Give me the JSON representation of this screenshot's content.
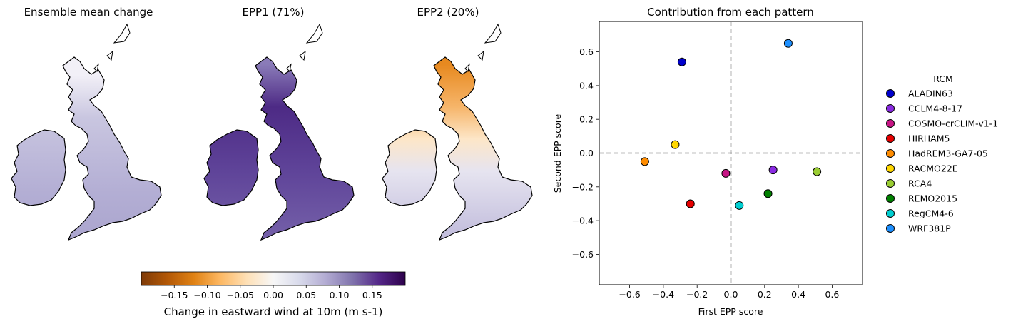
{
  "maps": [
    {
      "title": "Ensemble mean change",
      "pattern": "mean"
    },
    {
      "title": "EPP1 (71%)",
      "pattern": "epp1"
    },
    {
      "title": "EPP2 (20%)",
      "pattern": "epp2"
    }
  ],
  "colorbar": {
    "label": "Change in eastward wind at 10m (m s-1)",
    "range": [
      -0.2,
      0.2
    ],
    "ticks": [
      -0.15,
      -0.1,
      -0.05,
      0.0,
      0.05,
      0.1,
      0.15
    ],
    "tick_labels": [
      "−0.15",
      "−0.10",
      "−0.05",
      "0.00",
      "0.05",
      "0.10",
      "0.15"
    ],
    "colors": [
      "#7f3b08",
      "#b35806",
      "#e08214",
      "#fdb863",
      "#fee0b6",
      "#f7f7f7",
      "#d8daeb",
      "#b2abd2",
      "#8073ac",
      "#542788",
      "#2d004b"
    ]
  },
  "chart_data": {
    "type": "scatter",
    "title": "Contribution from each pattern",
    "xlabel": "First EPP score",
    "ylabel": "Second EPP score",
    "xlim": [
      -0.78,
      0.78
    ],
    "ylim": [
      -0.78,
      0.78
    ],
    "xticks": [
      -0.6,
      -0.4,
      -0.2,
      0.0,
      0.2,
      0.4,
      0.6
    ],
    "xtick_labels": [
      "−0.6",
      "−0.4",
      "−0.2",
      "0.0",
      "0.2",
      "0.4",
      "0.6"
    ],
    "yticks": [
      -0.6,
      -0.4,
      -0.2,
      0.0,
      0.2,
      0.4,
      0.6
    ],
    "ytick_labels": [
      "−0.6",
      "−0.4",
      "−0.2",
      "0.0",
      "0.2",
      "0.4",
      "0.6"
    ],
    "reference_lines": {
      "x": 0,
      "y": 0,
      "style": "dashed",
      "color": "#808080"
    },
    "legend": {
      "title": "RCM",
      "placement": "right, outside"
    },
    "series": [
      {
        "name": "ALADIN63",
        "x": -0.29,
        "y": 0.54,
        "color": "#0000cd"
      },
      {
        "name": "CCLM4-8-17",
        "x": 0.25,
        "y": -0.1,
        "color": "#8a2be2"
      },
      {
        "name": "COSMO-crCLIM-v1-1",
        "x": -0.03,
        "y": -0.12,
        "color": "#c71585"
      },
      {
        "name": "HIRHAM5",
        "x": -0.24,
        "y": -0.3,
        "color": "#e60000"
      },
      {
        "name": "HadREM3-GA7-05",
        "x": -0.51,
        "y": -0.05,
        "color": "#ff8c00"
      },
      {
        "name": "RACMO22E",
        "x": -0.33,
        "y": 0.05,
        "color": "#ffd700"
      },
      {
        "name": "RCA4",
        "x": 0.51,
        "y": -0.11,
        "color": "#9acd32"
      },
      {
        "name": "REMO2015",
        "x": 0.22,
        "y": -0.24,
        "color": "#008000"
      },
      {
        "name": "RegCM4-6",
        "x": 0.05,
        "y": -0.31,
        "color": "#00ced1"
      },
      {
        "name": "WRF381P",
        "x": 0.34,
        "y": 0.65,
        "color": "#1e90ff"
      }
    ]
  }
}
